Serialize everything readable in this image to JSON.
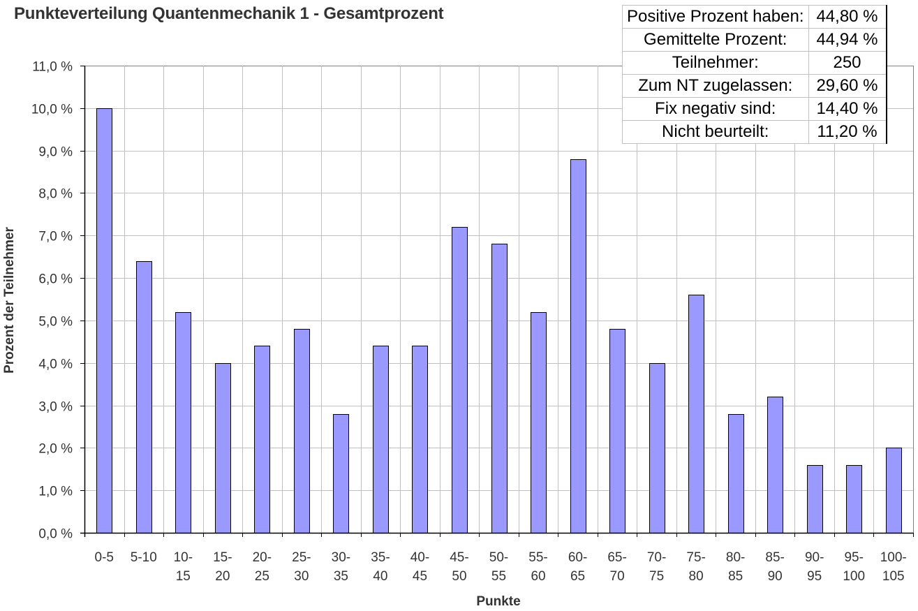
{
  "chart_data": {
    "type": "bar",
    "title": "Punkteverteilung Quantenmechanik 1 - Gesamtprozent",
    "xlabel": "Punkte",
    "ylabel": "Prozent der Teilnehmer",
    "ylim": [
      0,
      11
    ],
    "yticks": [
      "0,0 %",
      "1,0 %",
      "2,0 %",
      "3,0 %",
      "4,0 %",
      "5,0 %",
      "6,0 %",
      "7,0 %",
      "8,0 %",
      "9,0 %",
      "10,0 %",
      "11,0 %"
    ],
    "grid": true,
    "legend": "none",
    "categories": [
      "0-5",
      "5-10",
      "10-15",
      "15-20",
      "20-25",
      "25-30",
      "30-35",
      "35-40",
      "40-45",
      "45-50",
      "50-55",
      "55-60",
      "60-65",
      "65-70",
      "70-75",
      "75-80",
      "80-85",
      "85-90",
      "90-95",
      "95-100",
      "100-105"
    ],
    "category_lines": [
      [
        "0-5"
      ],
      [
        "5-10"
      ],
      [
        "10-",
        "15"
      ],
      [
        "15-",
        "20"
      ],
      [
        "20-",
        "25"
      ],
      [
        "25-",
        "30"
      ],
      [
        "30-",
        "35"
      ],
      [
        "35-",
        "40"
      ],
      [
        "40-",
        "45"
      ],
      [
        "45-",
        "50"
      ],
      [
        "50-",
        "55"
      ],
      [
        "55-",
        "60"
      ],
      [
        "60-",
        "65"
      ],
      [
        "65-",
        "70"
      ],
      [
        "70-",
        "75"
      ],
      [
        "75-",
        "80"
      ],
      [
        "80-",
        "85"
      ],
      [
        "85-",
        "90"
      ],
      [
        "90-",
        "95"
      ],
      [
        "95-",
        "100"
      ],
      [
        "100-",
        "105"
      ]
    ],
    "values": [
      10.0,
      6.4,
      5.2,
      4.0,
      4.4,
      4.8,
      2.8,
      4.4,
      4.4,
      7.2,
      6.8,
      5.2,
      8.8,
      4.8,
      4.0,
      5.6,
      2.8,
      3.2,
      1.6,
      1.6,
      2.0
    ],
    "bar_color": "#9999ff",
    "bar_border": "#000000",
    "grid_color": "#c0c0c0"
  },
  "stats_table": [
    {
      "label": "Positive Prozent haben:",
      "value": "44,80 %"
    },
    {
      "label": "Gemittelte Prozent:",
      "value": "44,94 %"
    },
    {
      "label": "Teilnehmer:",
      "value": "250"
    },
    {
      "label": "Zum NT zugelassen:",
      "value": "29,60 %"
    },
    {
      "label": "Fix negativ sind:",
      "value": "14,40 %"
    },
    {
      "label": "Nicht beurteilt:",
      "value": "11,20 %"
    }
  ]
}
